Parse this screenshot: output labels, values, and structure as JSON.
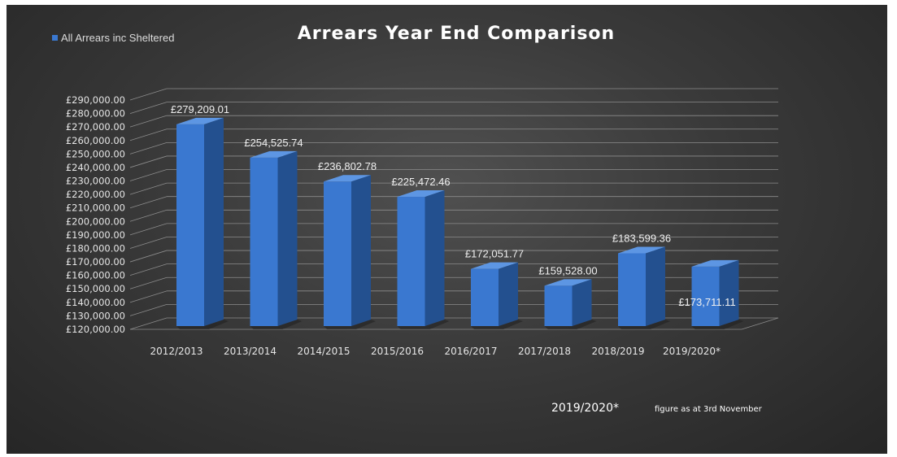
{
  "chart_data": {
    "type": "bar",
    "title": "Arrears Year End Comparison",
    "legend": {
      "position": "top-left",
      "entries": [
        "All Arrears inc Sheltered"
      ]
    },
    "categories": [
      "2012/2013",
      "2013/2014",
      "2014/2015",
      "2015/2016",
      "2016/2017",
      "2017/2018",
      "2018/2019",
      "2019/2020*"
    ],
    "series": [
      {
        "name": "All Arrears inc Sheltered",
        "values": [
          279209.01,
          254525.74,
          236802.78,
          225472.46,
          172051.77,
          159528.0,
          183599.36,
          173711.11
        ],
        "labels": [
          "£279,209.01",
          "£254,525.74",
          "£236,802.78",
          "£225,472.46",
          "£172,051.77",
          "£159,528.00",
          "£183,599.36",
          "£173,711.11"
        ],
        "color": "#3a78d0"
      }
    ],
    "ylim": [
      120000,
      290000
    ],
    "y_ticks": [
      "£120,000.00",
      "£130,000.00",
      "£140,000.00",
      "£150,000.00",
      "£160,000.00",
      "£170,000.00",
      "£180,000.00",
      "£190,000.00",
      "£200,000.00",
      "£210,000.00",
      "£220,000.00",
      "£230,000.00",
      "£240,000.00",
      "£250,000.00",
      "£260,000.00",
      "£270,000.00",
      "£280,000.00",
      "£290,000.00"
    ],
    "xlabel": "",
    "ylabel": "",
    "grid": true,
    "style": "3d-column",
    "colors": {
      "background": "#3a3a3a",
      "bar_front": "#3a78d0",
      "bar_side": "#23508f",
      "bar_top": "#5d96e3",
      "grid": "#8c8c8c",
      "text": "#e6e6e6"
    }
  },
  "footnote": {
    "marker": "2019/2020*",
    "text": "figure as at 3rd November"
  }
}
